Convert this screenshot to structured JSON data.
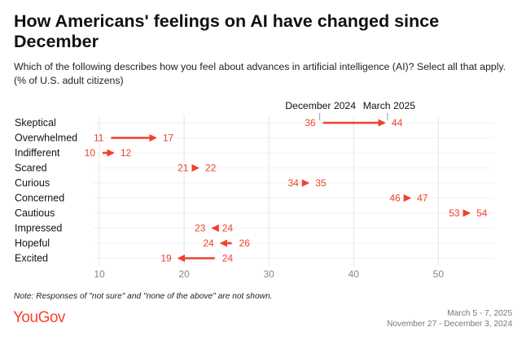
{
  "header": {
    "title": "How Americans' feelings on AI have changed since December",
    "subtitle": "Which of the following describes how you feel about advances in artificial intelligence (AI)? Select all that apply. (% of U.S. adult citizens)"
  },
  "chart_data": {
    "type": "dumbbell-arrow",
    "legend": {
      "start_label": "December 2024",
      "end_label": "March 2025"
    },
    "categories": [
      "Skeptical",
      "Overwhelmed",
      "Indifferent",
      "Scared",
      "Curious",
      "Concerned",
      "Cautious",
      "Impressed",
      "Hopeful",
      "Excited"
    ],
    "series": [
      {
        "name": "December 2024",
        "values": [
          36,
          11,
          10,
          21,
          34,
          46,
          53,
          24,
          26,
          24
        ]
      },
      {
        "name": "March 2025",
        "values": [
          44,
          17,
          12,
          22,
          35,
          47,
          54,
          23,
          24,
          19
        ]
      }
    ],
    "xticks": [
      10,
      20,
      30,
      40,
      50
    ],
    "xlim": [
      10,
      56.5
    ],
    "grid": true,
    "colors": {
      "arrow": "#f0412c",
      "grid": "#e6e6e6",
      "label_marker": "#999999"
    }
  },
  "footer": {
    "note": "Note: Responses of \"not sure\" and \"none of the above\" are not shown.",
    "brand": "YouGov",
    "date_lines": [
      "March 5 - 7, 2025",
      "November 27 - December 3, 2024"
    ]
  }
}
